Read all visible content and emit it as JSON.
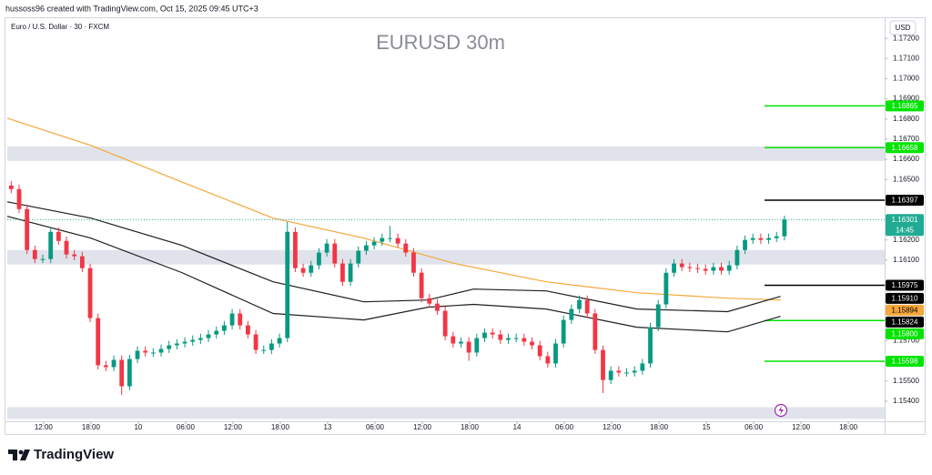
{
  "chart_data": {
    "type": "candlestick",
    "source": "hussoss96 created with TradingView.com, Oct 15, 2025 09:45 UTC+3",
    "subtitle": "Euro / U.S. Dollar · 30 · FXCM",
    "title": "EURUSD 30m",
    "currency": "USD",
    "brand": "TradingView",
    "up_color": "#089981",
    "down_color": "#f23645",
    "zone_color": "#e0e3eb",
    "grid": false,
    "xlim": [
      0,
      111.2
    ],
    "ylim": [
      1.153,
      1.173
    ],
    "xticks": [
      {
        "value": 4.6,
        "label": "12:00"
      },
      {
        "value": 10.6,
        "label": "18:00"
      },
      {
        "value": 16.6,
        "label": "10"
      },
      {
        "value": 22.6,
        "label": "06:00"
      },
      {
        "value": 28.6,
        "label": "12:00"
      },
      {
        "value": 34.6,
        "label": "18:00"
      },
      {
        "value": 40.6,
        "label": "13"
      },
      {
        "value": 46.6,
        "label": "06:00"
      },
      {
        "value": 52.6,
        "label": "12:00"
      },
      {
        "value": 58.6,
        "label": "18:00"
      },
      {
        "value": 64.6,
        "label": "14"
      },
      {
        "value": 70.6,
        "label": "06:00"
      },
      {
        "value": 76.6,
        "label": "12:00"
      },
      {
        "value": 82.6,
        "label": "18:00"
      },
      {
        "value": 88.6,
        "label": "15"
      },
      {
        "value": 94.6,
        "label": "06:00"
      },
      {
        "value": 100.6,
        "label": "12:00"
      },
      {
        "value": 106.6,
        "label": "18:00"
      }
    ],
    "yticks": [
      {
        "value": 1.172,
        "label": "1.17200"
      },
      {
        "value": 1.171,
        "label": "1.17100"
      },
      {
        "value": 1.17,
        "label": "1.17000"
      },
      {
        "value": 1.169,
        "label": "1.16900"
      },
      {
        "value": 1.168,
        "label": "1.16800"
      },
      {
        "value": 1.167,
        "label": "1.16700"
      },
      {
        "value": 1.166,
        "label": "1.16600"
      },
      {
        "value": 1.165,
        "label": "1.16500"
      },
      {
        "value": 1.162,
        "label": "1.16200"
      },
      {
        "value": 1.161,
        "label": "1.16100"
      },
      {
        "value": 1.157,
        "label": "1.15700"
      },
      {
        "value": 1.155,
        "label": "1.15500"
      },
      {
        "value": 1.154,
        "label": "1.15400"
      }
    ],
    "open": [
      1.1647,
      1.16452,
      1.16353,
      1.1615,
      1.16105,
      1.16105,
      1.1624,
      1.16195,
      1.16128,
      1.16119,
      1.1606,
      1.15812,
      1.15578,
      1.15569,
      1.15605,
      1.15474,
      1.15609,
      1.1565,
      1.15641,
      1.15641,
      1.15659,
      1.15677,
      1.15686,
      1.15695,
      1.15704,
      1.15713,
      1.15731,
      1.15749,
      1.15776,
      1.15835,
      1.15776,
      1.15731,
      1.15654,
      1.15654,
      1.15686,
      1.15713,
      1.1624,
      1.1606,
      1.16037,
      1.16074,
      1.16137,
      1.16182,
      1.16083,
      1.15992,
      1.16083,
      1.16146,
      1.16173,
      1.16191,
      1.16209,
      1.16209,
      1.16182,
      1.16137,
      1.16037,
      1.15911,
      1.15884,
      1.15848,
      1.15722,
      1.15686,
      1.15695,
      1.15641,
      1.15713,
      1.1574,
      1.15731,
      1.15704,
      1.15713,
      1.15713,
      1.15695,
      1.15677,
      1.15623,
      1.15587,
      1.15686,
      1.15803,
      1.15857,
      1.15902,
      1.15835,
      1.15654,
      1.15505,
      1.15551,
      1.15542,
      1.15542,
      1.15551,
      1.15587,
      1.15767,
      1.1588,
      1.16037,
      1.16083,
      1.16065,
      1.1606,
      1.16056,
      1.16047,
      1.16065,
      1.16047,
      1.16074,
      1.1615,
      1.162,
      1.16209,
      1.162,
      1.16209,
      1.16218
    ],
    "high": [
      1.16492,
      1.16474,
      1.16375,
      1.16172,
      1.16127,
      1.16262,
      1.16262,
      1.16217,
      1.1615,
      1.16141,
      1.16082,
      1.15834,
      1.156,
      1.15627,
      1.15627,
      1.15631,
      1.15672,
      1.15672,
      1.15663,
      1.15681,
      1.15699,
      1.15708,
      1.15717,
      1.15726,
      1.15735,
      1.15753,
      1.15771,
      1.15798,
      1.15857,
      1.15857,
      1.15798,
      1.15753,
      1.15676,
      1.15708,
      1.15735,
      1.1629,
      1.16262,
      1.16082,
      1.16096,
      1.16159,
      1.16204,
      1.16204,
      1.16105,
      1.16105,
      1.16168,
      1.16195,
      1.16213,
      1.16231,
      1.1627,
      1.16231,
      1.16204,
      1.16159,
      1.16059,
      1.15933,
      1.15906,
      1.1587,
      1.15744,
      1.15717,
      1.15717,
      1.15735,
      1.15762,
      1.15762,
      1.15753,
      1.15735,
      1.15735,
      1.15735,
      1.15717,
      1.15699,
      1.15645,
      1.15708,
      1.15825,
      1.15879,
      1.15924,
      1.15924,
      1.15857,
      1.15676,
      1.15573,
      1.15573,
      1.15564,
      1.15573,
      1.15609,
      1.15789,
      1.15902,
      1.16059,
      1.16105,
      1.16105,
      1.16087,
      1.16082,
      1.16078,
      1.16087,
      1.16087,
      1.16096,
      1.16172,
      1.16222,
      1.16231,
      1.16231,
      1.16231,
      1.1624,
      1.1632
    ],
    "low": [
      1.16432,
      1.16333,
      1.1613,
      1.16085,
      1.16085,
      1.16085,
      1.16175,
      1.16108,
      1.16099,
      1.1604,
      1.15792,
      1.15558,
      1.15549,
      1.15549,
      1.1543,
      1.15454,
      1.15589,
      1.15621,
      1.15621,
      1.15621,
      1.15639,
      1.15657,
      1.15666,
      1.15675,
      1.15684,
      1.15693,
      1.15711,
      1.15729,
      1.15756,
      1.15756,
      1.15711,
      1.15634,
      1.15634,
      1.15634,
      1.15666,
      1.15693,
      1.1604,
      1.16017,
      1.16017,
      1.16054,
      1.16117,
      1.16063,
      1.15972,
      1.15972,
      1.16063,
      1.16126,
      1.16153,
      1.16171,
      1.16189,
      1.16162,
      1.16117,
      1.16017,
      1.15891,
      1.15864,
      1.15828,
      1.15702,
      1.15666,
      1.15666,
      1.156,
      1.15621,
      1.15693,
      1.15711,
      1.15684,
      1.15684,
      1.15693,
      1.15675,
      1.15657,
      1.15603,
      1.15567,
      1.15567,
      1.15666,
      1.15783,
      1.15837,
      1.15815,
      1.15634,
      1.1544,
      1.15485,
      1.15522,
      1.15522,
      1.15522,
      1.15531,
      1.15567,
      1.15747,
      1.1586,
      1.16017,
      1.16045,
      1.1604,
      1.16036,
      1.16027,
      1.16027,
      1.16027,
      1.16027,
      1.16054,
      1.1613,
      1.1618,
      1.1618,
      1.1618,
      1.16189,
      1.16198
    ],
    "close": [
      1.16452,
      1.16353,
      1.1615,
      1.16105,
      1.16105,
      1.1624,
      1.16195,
      1.16128,
      1.16119,
      1.1606,
      1.15812,
      1.15578,
      1.15569,
      1.15605,
      1.15474,
      1.15609,
      1.1565,
      1.15641,
      1.15641,
      1.15659,
      1.15677,
      1.15686,
      1.15695,
      1.15704,
      1.15713,
      1.15731,
      1.15749,
      1.15776,
      1.15835,
      1.15776,
      1.15731,
      1.15654,
      1.15654,
      1.15686,
      1.15713,
      1.1624,
      1.1606,
      1.16037,
      1.16074,
      1.16137,
      1.16182,
      1.16083,
      1.15992,
      1.16083,
      1.16146,
      1.16173,
      1.16191,
      1.16209,
      1.16209,
      1.16182,
      1.16137,
      1.16037,
      1.15911,
      1.15884,
      1.15848,
      1.15722,
      1.15686,
      1.15695,
      1.15641,
      1.15713,
      1.1574,
      1.15731,
      1.15704,
      1.15713,
      1.15713,
      1.15695,
      1.15677,
      1.15623,
      1.15587,
      1.15686,
      1.15803,
      1.15857,
      1.15902,
      1.15835,
      1.15654,
      1.15505,
      1.15551,
      1.15542,
      1.15542,
      1.15551,
      1.15587,
      1.15767,
      1.1588,
      1.16037,
      1.16083,
      1.16065,
      1.1606,
      1.16056,
      1.16047,
      1.16065,
      1.16047,
      1.16074,
      1.1615,
      1.162,
      1.16209,
      1.162,
      1.16209,
      1.16218,
      1.16301
    ],
    "overlays": [
      {
        "color": "#f5a73b",
        "x": [
          0,
          10.6,
          22.1,
          33.7,
          45.2,
          56.7,
          68.3,
          79.8,
          91.3,
          98.0
        ],
        "values": [
          1.16804,
          1.16669,
          1.16488,
          1.16308,
          1.16209,
          1.16083,
          1.15992,
          1.15938,
          1.15911,
          1.15902
        ]
      },
      {
        "color": "#1e1e1e",
        "x": [
          0,
          10.6,
          22.1,
          33.7,
          45.2,
          53.3,
          59.1,
          68.3,
          79.8,
          91.3,
          98.0
        ],
        "values": [
          1.16389,
          1.16308,
          1.16173,
          1.15992,
          1.15893,
          1.15902,
          1.15956,
          1.15947,
          1.15857,
          1.15844,
          1.1592
        ]
      },
      {
        "color": "#1e1e1e",
        "x": [
          0,
          10.6,
          22.1,
          33.7,
          45.2,
          53.3,
          59.1,
          68.3,
          79.8,
          91.3,
          98.0
        ],
        "values": [
          1.16317,
          1.16209,
          1.16038,
          1.15835,
          1.15803,
          1.15866,
          1.1588,
          1.15857,
          1.15767,
          1.15744,
          1.15821
        ]
      }
    ],
    "zones": [
      [
        1.16664,
        1.16592
      ],
      [
        1.1615,
        1.16078
      ],
      [
        1.1537,
        1.15312
      ]
    ],
    "levels": [
      {
        "value": 1.16865,
        "color": "#00e400"
      },
      {
        "value": 1.16658,
        "color": "#00e400"
      },
      {
        "value": 1.16397,
        "color": "#000000"
      },
      {
        "value": 1.15975,
        "color": "#000000"
      },
      {
        "value": 1.158,
        "color": "#00e400"
      },
      {
        "value": 1.15598,
        "color": "#00e400"
      }
    ],
    "last_price": {
      "value": 1.16301,
      "label": "1.16301",
      "countdown": "14:45",
      "color": "#22ab94"
    },
    "price_labels": [
      {
        "value": 1.16865,
        "label": "1.16865",
        "color": "#00e400"
      },
      {
        "value": 1.16658,
        "label": "1.16658",
        "color": "#00e400"
      },
      {
        "value": 1.16397,
        "label": "1.16397",
        "color": "#000000"
      },
      {
        "value": 1.15975,
        "label": "1.15975",
        "color": "#000000"
      },
      {
        "value": 1.1591,
        "label": "1.15910",
        "color": "#000000"
      },
      {
        "value": 1.15894,
        "label": "1.15894",
        "color": "#f5a73b"
      },
      {
        "value": 1.15824,
        "label": "1.15824",
        "color": "#000000"
      },
      {
        "value": 1.158,
        "label": "1.15800",
        "color": "#00e400"
      },
      {
        "value": 1.15598,
        "label": "1.15598",
        "color": "#00e400"
      }
    ]
  }
}
